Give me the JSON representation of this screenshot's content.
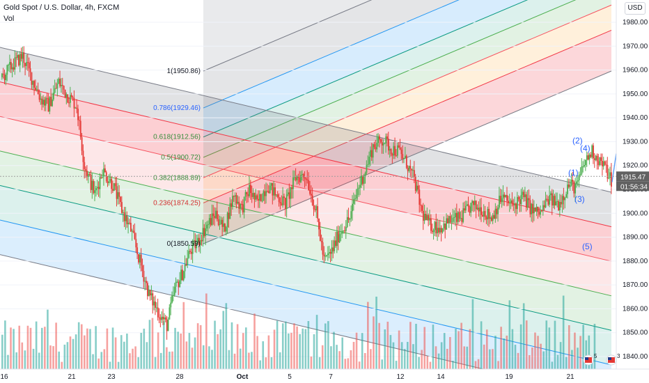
{
  "header": {
    "title": "Gold Spot / U.S. Dollar, 4h, FXCM",
    "indicator": "Vol"
  },
  "price_axis": {
    "currency": "USD",
    "last_price": "1915.47",
    "countdown": "01:56:34"
  },
  "colors": {
    "up": "#26a69a",
    "down": "#ef5350",
    "up_body": "#4caf50",
    "down_body": "#e53935",
    "blue_label": "#2962ff",
    "last_price_bg": "#808080"
  },
  "fib_labels": [
    {
      "text": "1(1950.86)",
      "ratio": 1
    },
    {
      "text": "0.786(1929.46)",
      "ratio": 0.786
    },
    {
      "text": "0.618(1912.56)",
      "ratio": 0.618
    },
    {
      "text": "0.5(1900.72)",
      "ratio": 0.5
    },
    {
      "text": "0.382(1888.89)",
      "ratio": 0.382
    },
    {
      "text": "0.236(1874.25)",
      "ratio": 0.236
    },
    {
      "text": "0(1850.59)",
      "ratio": 0
    }
  ],
  "wave_labels": [
    "(2)",
    "(4)",
    "(1)",
    "(3)",
    "(5)"
  ],
  "events": [
    "5",
    "3"
  ],
  "chart_data": {
    "type": "candlestick",
    "title": "Gold Spot / U.S. Dollar, 4h, FXCM",
    "ylim": [
      1835,
      1985
    ],
    "y_ticks": [
      1840,
      1850,
      1860,
      1870,
      1880,
      1890,
      1900,
      1910,
      1920,
      1930,
      1940,
      1950,
      1960,
      1970,
      1980
    ],
    "x_ticks": [
      "16",
      "21",
      "23",
      "28",
      "Oct",
      "5",
      "7",
      "12",
      "14",
      "19",
      "21"
    ],
    "close_path": [
      [
        0,
        1957
      ],
      [
        8,
        1962
      ],
      [
        16,
        1966
      ],
      [
        22,
        1958
      ],
      [
        30,
        1948
      ],
      [
        36,
        1945
      ],
      [
        44,
        1955
      ],
      [
        50,
        1950
      ],
      [
        58,
        1945
      ],
      [
        64,
        1920
      ],
      [
        72,
        1908
      ],
      [
        78,
        1918
      ],
      [
        86,
        1912
      ],
      [
        94,
        1900
      ],
      [
        100,
        1893
      ],
      [
        108,
        1878
      ],
      [
        114,
        1866
      ],
      [
        122,
        1858
      ],
      [
        128,
        1853
      ],
      [
        134,
        1868
      ],
      [
        140,
        1875
      ],
      [
        146,
        1884
      ],
      [
        152,
        1888
      ],
      [
        158,
        1894
      ],
      [
        166,
        1900
      ],
      [
        172,
        1893
      ],
      [
        180,
        1908
      ],
      [
        186,
        1902
      ],
      [
        192,
        1910
      ],
      [
        198,
        1904
      ],
      [
        206,
        1912
      ],
      [
        212,
        1908
      ],
      [
        220,
        1904
      ],
      [
        228,
        1915
      ],
      [
        236,
        1916
      ],
      [
        244,
        1900
      ],
      [
        250,
        1880
      ],
      [
        256,
        1884
      ],
      [
        262,
        1892
      ],
      [
        270,
        1898
      ],
      [
        276,
        1910
      ],
      [
        282,
        1918
      ],
      [
        288,
        1928
      ],
      [
        296,
        1931
      ],
      [
        302,
        1927
      ],
      [
        308,
        1926
      ],
      [
        314,
        1921
      ],
      [
        320,
        1914
      ],
      [
        326,
        1900
      ],
      [
        332,
        1895
      ],
      [
        340,
        1894
      ],
      [
        348,
        1897
      ],
      [
        356,
        1898
      ],
      [
        364,
        1903
      ],
      [
        372,
        1902
      ],
      [
        380,
        1898
      ],
      [
        388,
        1907
      ],
      [
        396,
        1903
      ],
      [
        404,
        1907
      ],
      [
        412,
        1901
      ],
      [
        418,
        1900
      ],
      [
        424,
        1906
      ],
      [
        432,
        1904
      ],
      [
        440,
        1912
      ],
      [
        446,
        1911
      ],
      [
        452,
        1921
      ],
      [
        458,
        1926
      ],
      [
        464,
        1922
      ],
      [
        468,
        1919
      ],
      [
        474,
        1913
      ]
    ],
    "volume": {
      "type": "bar",
      "count": 216,
      "max_hint": 100,
      "colors": [
        "#26a69a",
        "#ef5350"
      ]
    },
    "fib_channel": {
      "levels": [
        0,
        0.236,
        0.382,
        0.5,
        0.618,
        0.786,
        1
      ],
      "values": [
        1850.59,
        1874.25,
        1888.89,
        1900.72,
        1912.56,
        1929.46,
        1950.86
      ]
    }
  }
}
